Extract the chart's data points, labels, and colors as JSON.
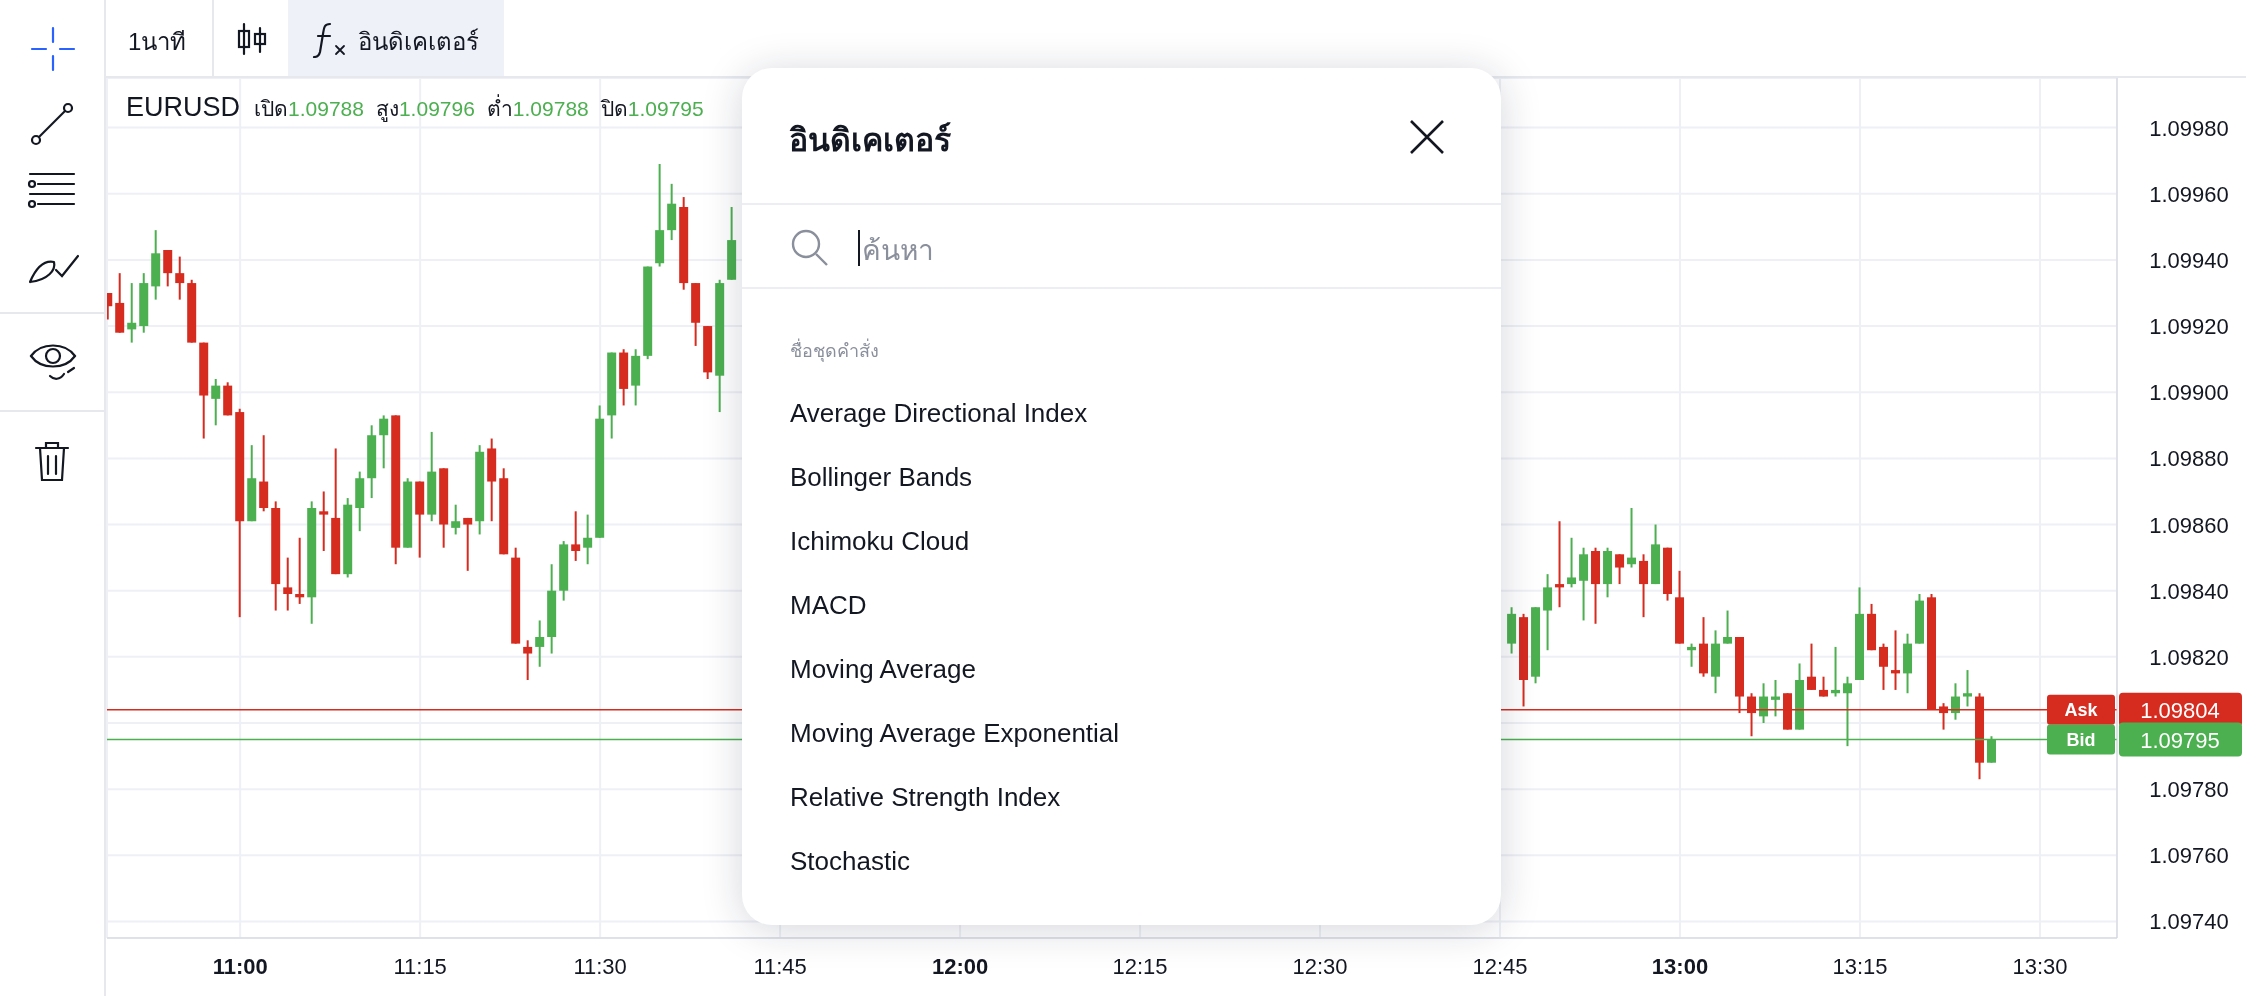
{
  "chart_data": {
    "type": "candlestick",
    "title": "EURUSD",
    "annotations": [
      "1นาที",
      "อินดิเคเตอร์",
      "เปิด1.09788",
      "สูง1.09796",
      "ต่ำ1.09788",
      "ปิด1.09795",
      "1.09804",
      "1.09795",
      "อินดิเคเตอร์",
      "ค้นหา",
      "ชื่อชุดคำสั่ง",
      "Average Directional Index",
      "Bollinger Bands",
      "Ichimoku Cloud",
      "MACD",
      "Moving Average",
      "Moving Average Exponential",
      "Relative Strength Index",
      "Stochastic"
    ],
    "x": [
      10.8167,
      10.8333,
      10.85,
      10.8667,
      10.8833,
      10.9,
      10.9167,
      10.9333,
      10.95,
      10.9667,
      10.9833,
      11,
      11.0167,
      11.0333,
      11.05,
      11.0667,
      11.0833,
      11.1,
      11.1167,
      11.1333,
      11.15,
      11.1667,
      11.1833,
      11.2,
      11.2167,
      11.2333,
      11.25,
      11.2667,
      11.2833,
      11.3,
      11.3167,
      11.3333,
      11.35,
      11.3667,
      11.3833,
      11.4,
      11.4167,
      11.4333,
      11.45,
      11.4667,
      11.4833,
      11.5,
      11.5167,
      11.5333,
      11.55,
      11.5667,
      11.5833,
      11.6,
      11.6167,
      11.6333,
      11.65,
      11.6667,
      11.6833,
      12.7667,
      12.7833,
      12.8,
      12.8167,
      12.8333,
      12.85,
      12.8667,
      12.8833,
      12.9,
      12.9167,
      12.9333,
      12.95,
      12.9667,
      12.9833,
      13,
      13.0167,
      13.0333,
      13.05,
      13.0667,
      13.0833,
      13.1,
      13.1167,
      13.1333,
      13.15,
      13.1667,
      13.1833,
      13.2,
      13.2167,
      13.2333,
      13.25,
      13.2667,
      13.2833,
      13.3,
      13.3167,
      13.3333,
      13.35,
      13.3667,
      13.3833,
      13.4,
      13.4167,
      13.4333
    ],
    "ohlc": [
      [
        1.0993,
        1.0993,
        1.09922,
        1.09926
      ],
      [
        1.09927,
        1.09936,
        1.09918,
        1.09918
      ],
      [
        1.09919,
        1.09933,
        1.09915,
        1.09921
      ],
      [
        1.0992,
        1.09936,
        1.09918,
        1.09933
      ],
      [
        1.09932,
        1.09949,
        1.09928,
        1.09942
      ],
      [
        1.09943,
        1.09943,
        1.09932,
        1.09936
      ],
      [
        1.09936,
        1.09941,
        1.09928,
        1.09933
      ],
      [
        1.09933,
        1.09934,
        1.09915,
        1.09915
      ],
      [
        1.09915,
        1.09915,
        1.09886,
        1.09899
      ],
      [
        1.09898,
        1.09904,
        1.0989,
        1.09902
      ],
      [
        1.09902,
        1.09903,
        1.09893,
        1.09893
      ],
      [
        1.09894,
        1.09895,
        1.09832,
        1.09861
      ],
      [
        1.09861,
        1.09884,
        1.09861,
        1.09874
      ],
      [
        1.09873,
        1.09887,
        1.09864,
        1.09865
      ],
      [
        1.09865,
        1.09867,
        1.09834,
        1.09842
      ],
      [
        1.09841,
        1.0985,
        1.09834,
        1.09839
      ],
      [
        1.09839,
        1.09856,
        1.09836,
        1.09838
      ],
      [
        1.09838,
        1.09867,
        1.0983,
        1.09865
      ],
      [
        1.09864,
        1.0987,
        1.09852,
        1.09863
      ],
      [
        1.09862,
        1.09883,
        1.09845,
        1.09845
      ],
      [
        1.09845,
        1.09868,
        1.09844,
        1.09866
      ],
      [
        1.09865,
        1.09876,
        1.09858,
        1.09874
      ],
      [
        1.09874,
        1.0989,
        1.09868,
        1.09887
      ],
      [
        1.09887,
        1.09893,
        1.09877,
        1.09892
      ],
      [
        1.09893,
        1.09893,
        1.09848,
        1.09853
      ],
      [
        1.09853,
        1.09874,
        1.09853,
        1.09873
      ],
      [
        1.09873,
        1.09873,
        1.0985,
        1.09863
      ],
      [
        1.09863,
        1.09888,
        1.09861,
        1.09876
      ],
      [
        1.09877,
        1.09877,
        1.09853,
        1.0986
      ],
      [
        1.09859,
        1.09866,
        1.09857,
        1.09861
      ],
      [
        1.09862,
        1.09862,
        1.09846,
        1.0986
      ],
      [
        1.09861,
        1.09884,
        1.09857,
        1.09882
      ],
      [
        1.09883,
        1.09886,
        1.09861,
        1.09873
      ],
      [
        1.09874,
        1.09877,
        1.09851,
        1.09851
      ],
      [
        1.0985,
        1.09853,
        1.09824,
        1.09824
      ],
      [
        1.09823,
        1.09825,
        1.09813,
        1.09821
      ],
      [
        1.09823,
        1.09831,
        1.09817,
        1.09826
      ],
      [
        1.09826,
        1.09848,
        1.09821,
        1.0984
      ],
      [
        1.0984,
        1.09855,
        1.09837,
        1.09854
      ],
      [
        1.09854,
        1.09864,
        1.09849,
        1.09852
      ],
      [
        1.09853,
        1.09863,
        1.09848,
        1.09856
      ],
      [
        1.09856,
        1.09896,
        1.09856,
        1.09892
      ],
      [
        1.09893,
        1.09912,
        1.09886,
        1.09912
      ],
      [
        1.09912,
        1.09913,
        1.09896,
        1.09901
      ],
      [
        1.09902,
        1.09913,
        1.09896,
        1.09911
      ],
      [
        1.09911,
        1.09938,
        1.0991,
        1.09938
      ],
      [
        1.09939,
        1.09969,
        1.09938,
        1.09949
      ],
      [
        1.09949,
        1.09963,
        1.09946,
        1.09957
      ],
      [
        1.09956,
        1.09959,
        1.09931,
        1.09933
      ],
      [
        1.09933,
        1.09933,
        1.09914,
        1.09921
      ],
      [
        1.0992,
        1.0992,
        1.09904,
        1.09906
      ],
      [
        1.09905,
        1.09934,
        1.09894,
        1.09933
      ],
      [
        1.09934,
        1.09956,
        1.09934,
        1.09946
      ],
      [
        1.09824,
        1.09835,
        1.09821,
        1.09833
      ],
      [
        1.09832,
        1.09833,
        1.09805,
        1.09813
      ],
      [
        1.09814,
        1.09835,
        1.09812,
        1.09835
      ],
      [
        1.09834,
        1.09845,
        1.09822,
        1.09841
      ],
      [
        1.09842,
        1.09861,
        1.09835,
        1.09841
      ],
      [
        1.09842,
        1.09856,
        1.09841,
        1.09844
      ],
      [
        1.09843,
        1.09853,
        1.09831,
        1.09851
      ],
      [
        1.09852,
        1.09853,
        1.0983,
        1.09842
      ],
      [
        1.09842,
        1.09853,
        1.09838,
        1.09852
      ],
      [
        1.09851,
        1.09851,
        1.09842,
        1.09847
      ],
      [
        1.09848,
        1.09865,
        1.09847,
        1.0985
      ],
      [
        1.09849,
        1.09851,
        1.09832,
        1.09842
      ],
      [
        1.09842,
        1.0986,
        1.09842,
        1.09854
      ],
      [
        1.09853,
        1.09853,
        1.09837,
        1.09839
      ],
      [
        1.09838,
        1.09846,
        1.09824,
        1.09824
      ],
      [
        1.09822,
        1.09824,
        1.09817,
        1.09823
      ],
      [
        1.09824,
        1.09832,
        1.09814,
        1.09815
      ],
      [
        1.09814,
        1.09828,
        1.09809,
        1.09824
      ],
      [
        1.09824,
        1.09834,
        1.09824,
        1.09826
      ],
      [
        1.09826,
        1.09826,
        1.09803,
        1.09808
      ],
      [
        1.09808,
        1.09809,
        1.09796,
        1.09803
      ],
      [
        1.09802,
        1.09812,
        1.098,
        1.09808
      ],
      [
        1.09807,
        1.09813,
        1.09802,
        1.09808
      ],
      [
        1.09809,
        1.09809,
        1.09798,
        1.09798
      ],
      [
        1.09798,
        1.09818,
        1.09798,
        1.09813
      ],
      [
        1.09814,
        1.09824,
        1.0981,
        1.0981
      ],
      [
        1.0981,
        1.09814,
        1.09808,
        1.09808
      ],
      [
        1.09809,
        1.09823,
        1.09808,
        1.0981
      ],
      [
        1.09809,
        1.09814,
        1.09793,
        1.09812
      ],
      [
        1.09813,
        1.09841,
        1.09813,
        1.09833
      ],
      [
        1.09833,
        1.09836,
        1.09822,
        1.09822
      ],
      [
        1.09823,
        1.09824,
        1.0981,
        1.09817
      ],
      [
        1.09816,
        1.09828,
        1.0981,
        1.09815
      ],
      [
        1.09815,
        1.09827,
        1.09809,
        1.09824
      ],
      [
        1.09824,
        1.09839,
        1.09824,
        1.09837
      ],
      [
        1.09838,
        1.09839,
        1.09804,
        1.09804
      ],
      [
        1.09805,
        1.09806,
        1.09798,
        1.09803
      ],
      [
        1.09803,
        1.09812,
        1.09801,
        1.09808
      ],
      [
        1.09808,
        1.09816,
        1.09805,
        1.09809
      ],
      [
        1.09808,
        1.09809,
        1.09783,
        1.09788
      ],
      [
        1.09788,
        1.09796,
        1.09788,
        1.09795
      ]
    ],
    "colors": [
      "#d62b1f",
      "#d62b1f",
      "#4caf50",
      "#4caf50",
      "#4caf50",
      "#d62b1f",
      "#d62b1f",
      "#d62b1f",
      "#d62b1f",
      "#4caf50",
      "#d62b1f",
      "#d62b1f",
      "#4caf50",
      "#d62b1f",
      "#d62b1f",
      "#d62b1f",
      "#d62b1f",
      "#4caf50",
      "#d62b1f",
      "#d62b1f",
      "#4caf50",
      "#4caf50",
      "#4caf50",
      "#4caf50",
      "#d62b1f",
      "#4caf50",
      "#d62b1f",
      "#4caf50",
      "#d62b1f",
      "#4caf50",
      "#d62b1f",
      "#4caf50",
      "#d62b1f",
      "#d62b1f",
      "#d62b1f",
      "#d62b1f",
      "#4caf50",
      "#4caf50",
      "#4caf50",
      "#d62b1f",
      "#4caf50",
      "#4caf50",
      "#4caf50",
      "#d62b1f",
      "#4caf50",
      "#4caf50",
      "#4caf50",
      "#4caf50",
      "#d62b1f",
      "#d62b1f",
      "#d62b1f",
      "#4caf50",
      "#4caf50",
      "#4caf50",
      "#d62b1f",
      "#4caf50",
      "#4caf50",
      "#d62b1f",
      "#4caf50",
      "#4caf50",
      "#d62b1f",
      "#4caf50",
      "#d62b1f",
      "#4caf50",
      "#d62b1f",
      "#4caf50",
      "#d62b1f",
      "#d62b1f",
      "#4caf50",
      "#d62b1f",
      "#4caf50",
      "#4caf50",
      "#d62b1f",
      "#d62b1f",
      "#4caf50",
      "#4caf50",
      "#d62b1f",
      "#4caf50",
      "#d62b1f",
      "#d62b1f",
      "#4caf50",
      "#4caf50",
      "#4caf50",
      "#d62b1f",
      "#d62b1f",
      "#d62b1f",
      "#4caf50",
      "#4caf50",
      "#d62b1f",
      "#d62b1f",
      "#4caf50",
      "#4caf50",
      "#d62b1f",
      "#4caf50"
    ],
    "xlim": [
      10.815,
      13.607
    ],
    "xticks": [
      {
        "value": 11,
        "label": "11:00"
      },
      {
        "value": 11.25,
        "label": "11:15"
      },
      {
        "value": 11.5,
        "label": "11:30"
      },
      {
        "value": 11.75,
        "label": "11:45"
      },
      {
        "value": 12,
        "label": "12:00"
      },
      {
        "value": 12.25,
        "label": "12:15"
      },
      {
        "value": 12.5,
        "label": "12:30"
      },
      {
        "value": 12.75,
        "label": "12:45"
      },
      {
        "value": 13,
        "label": "13:00"
      },
      {
        "value": 13.25,
        "label": "13:15"
      },
      {
        "value": 13.5,
        "label": "13:30"
      }
    ],
    "ylim": [
      1.09735,
      1.09995
    ],
    "yticks": [
      {
        "value": 1.0974,
        "label": "1.09740"
      },
      {
        "value": 1.0976,
        "label": "1.09760"
      },
      {
        "value": 1.0978,
        "label": "1.09780"
      },
      {
        "value": 1.098,
        "label": null
      },
      {
        "value": 1.0982,
        "label": "1.09820"
      },
      {
        "value": 1.0984,
        "label": "1.09840"
      },
      {
        "value": 1.0986,
        "label": "1.09860"
      },
      {
        "value": 1.0988,
        "label": "1.09880"
      },
      {
        "value": 1.099,
        "label": "1.09900"
      },
      {
        "value": 1.0992,
        "label": "1.09920"
      },
      {
        "value": 1.0994,
        "label": "1.09940"
      },
      {
        "value": 1.0996,
        "label": "1.09960"
      },
      {
        "value": 1.0998,
        "label": "1.09980"
      }
    ],
    "ref_lines": [
      {
        "axis": "y",
        "value": 1.09804,
        "label": "Ask",
        "color": "#d62b1f"
      },
      {
        "axis": "y",
        "value": 1.09795,
        "label": "Bid",
        "color": "#4caf50"
      }
    ],
    "grid": true
  }
}
